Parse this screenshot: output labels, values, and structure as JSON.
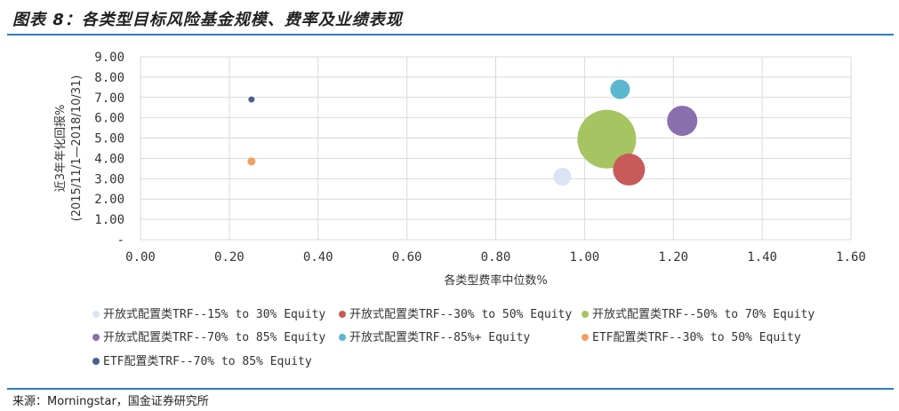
{
  "header": {
    "title": "图表 8：各类型目标风险基金规模、费率及业绩表现"
  },
  "footer": {
    "source": "来源：Morningstar，国金证券研究所"
  },
  "chart_data": {
    "type": "bubble",
    "xlabel": "各类型费率中位数%",
    "ylabel_lines": [
      "近3年年化回报%",
      "(2015/11/1—2018/10/31)"
    ],
    "xlim": [
      0,
      1.6
    ],
    "ylim": [
      0,
      9
    ],
    "x_ticks": [
      "0.00",
      "0.20",
      "0.40",
      "0.60",
      "0.80",
      "1.00",
      "1.20",
      "1.40",
      "1.60"
    ],
    "y_ticks": [
      "-",
      "1.00",
      "2.00",
      "3.00",
      "4.00",
      "5.00",
      "6.00",
      "7.00",
      "8.00",
      "9.00"
    ],
    "grid": true,
    "legend_position": "bottom",
    "series": [
      {
        "name": "开放式配置类TRF--15% to 30% Equity",
        "x": 0.95,
        "y": 3.1,
        "size": 10,
        "color": "#dbe4f5"
      },
      {
        "name": "开放式配置类TRF--30% to 50% Equity",
        "x": 1.1,
        "y": 3.45,
        "size": 18,
        "color": "#c85a5a"
      },
      {
        "name": "开放式配置类TRF--50% to 70% Equity",
        "x": 1.05,
        "y": 4.95,
        "size": 33,
        "color": "#a5c462"
      },
      {
        "name": "开放式配置类TRF--70% to 85% Equity",
        "x": 1.22,
        "y": 5.85,
        "size": 17,
        "color": "#8a6fae"
      },
      {
        "name": "开放式配置类TRF--85%+ Equity",
        "x": 1.08,
        "y": 7.4,
        "size": 11,
        "color": "#5bb7d0"
      },
      {
        "name": "ETF配置类TRF--30% to 50% Equity",
        "x": 0.25,
        "y": 3.85,
        "size": 4.5,
        "color": "#f0a060"
      },
      {
        "name": "ETF配置类TRF--70% to 85% Equity",
        "x": 0.25,
        "y": 6.9,
        "size": 3.5,
        "color": "#4a5f8c"
      }
    ]
  }
}
